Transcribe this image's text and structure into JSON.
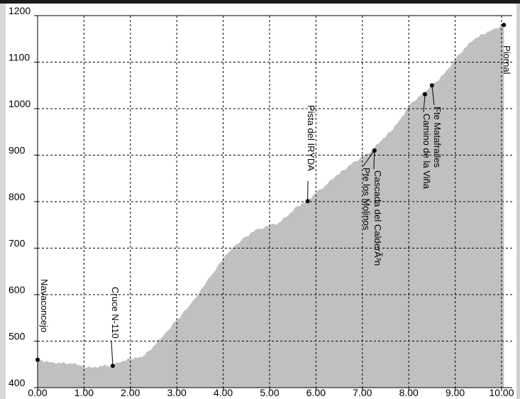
{
  "chart_data": {
    "type": "area",
    "title": "",
    "xlabel": "",
    "ylabel": "",
    "xlim": [
      0,
      10.1
    ],
    "ylim": [
      400,
      1200
    ],
    "grid": true,
    "xticks": [
      "0.00",
      "1.00",
      "2.00",
      "3.00",
      "4.00",
      "5.00",
      "6.00",
      "7.00",
      "8.00",
      "9.00",
      "10.00"
    ],
    "yticks": [
      "400",
      "500",
      "600",
      "700",
      "800",
      "900",
      "1000",
      "1100",
      "1200"
    ],
    "x": [
      0.0,
      0.1,
      0.3,
      0.5,
      0.7,
      0.9,
      1.0,
      1.2,
      1.4,
      1.6,
      1.8,
      2.0,
      2.2,
      2.3,
      2.5,
      2.7,
      3.0,
      3.3,
      3.6,
      3.9,
      4.2,
      4.5,
      4.7,
      5.0,
      5.2,
      5.4,
      5.6,
      5.8,
      6.0,
      6.2,
      6.4,
      6.6,
      6.8,
      7.0,
      7.2,
      7.4,
      7.6,
      7.8,
      8.0,
      8.2,
      8.4,
      8.6,
      8.8,
      9.0,
      9.2,
      9.4,
      9.6,
      9.8,
      10.05
    ],
    "values": [
      460,
      458,
      455,
      452,
      453,
      448,
      445,
      444,
      446,
      448,
      455,
      462,
      466,
      468,
      490,
      510,
      545,
      580,
      620,
      665,
      700,
      725,
      740,
      748,
      755,
      770,
      790,
      802,
      818,
      835,
      852,
      868,
      885,
      895,
      910,
      930,
      950,
      975,
      1005,
      1025,
      1040,
      1058,
      1080,
      1105,
      1130,
      1148,
      1160,
      1170,
      1180
    ],
    "waypoints": [
      {
        "label": "Navaconcejo",
        "x": 0.0,
        "y": 460
      },
      {
        "label": "Cruce N-110",
        "x": 1.62,
        "y": 447
      },
      {
        "label": "Pista del IRYDA",
        "x": 5.82,
        "y": 801
      },
      {
        "label": "Pte los Molinos",
        "x": 7.26,
        "y": 910
      },
      {
        "label": "Cascada del CalderÃ³n",
        "x": 7.26,
        "y": 910
      },
      {
        "label": "Camino de la Viña",
        "x": 8.35,
        "y": 1031
      },
      {
        "label": "Fte Matafrailes",
        "x": 8.5,
        "y": 1050
      },
      {
        "label": "Piornal",
        "x": 10.05,
        "y": 1180
      }
    ],
    "colors": {
      "fill": "#c0c0c0",
      "grid": "#000000",
      "axis": "#000000"
    }
  }
}
